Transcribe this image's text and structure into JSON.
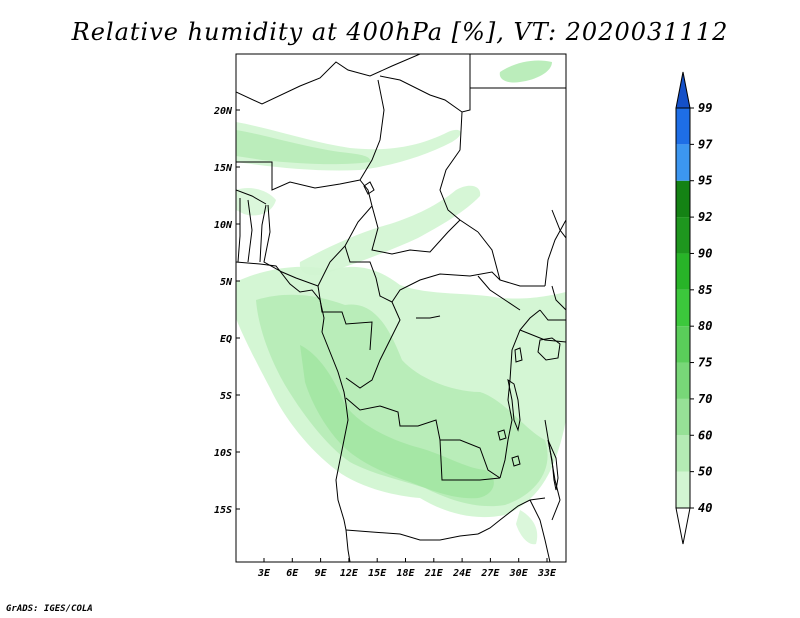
{
  "title": "Relative humidity at 400hPa [%], VT: 2020031112",
  "credit": "GrADS: IGES/COLA",
  "map": {
    "lat_labels": [
      "20N",
      "15N",
      "10N",
      "5N",
      "EQ",
      "5S",
      "10S",
      "15S"
    ],
    "lon_labels": [
      "3E",
      "6E",
      "9E",
      "12E",
      "15E",
      "18E",
      "21E",
      "24E",
      "27E",
      "30E",
      "33E"
    ],
    "land_color": "#ffffff",
    "border_color": "#000000"
  },
  "colorbar": {
    "levels": [
      "40",
      "50",
      "60",
      "70",
      "75",
      "80",
      "85",
      "90",
      "92",
      "95",
      "97",
      "99"
    ],
    "colors": [
      "#f0fff0",
      "#d2f5d2",
      "#b4ebb4",
      "#96e196",
      "#78d778",
      "#5acd5a",
      "#3cc83c",
      "#28b428",
      "#1e961e",
      "#148214",
      "#3c96f0",
      "#1e6ee6",
      "#1450c8"
    ]
  },
  "fields": {
    "humidity_fill_colors": [
      "#f0fff0",
      "#d2f5d2",
      "#b4ebb4",
      "#96e196"
    ]
  }
}
